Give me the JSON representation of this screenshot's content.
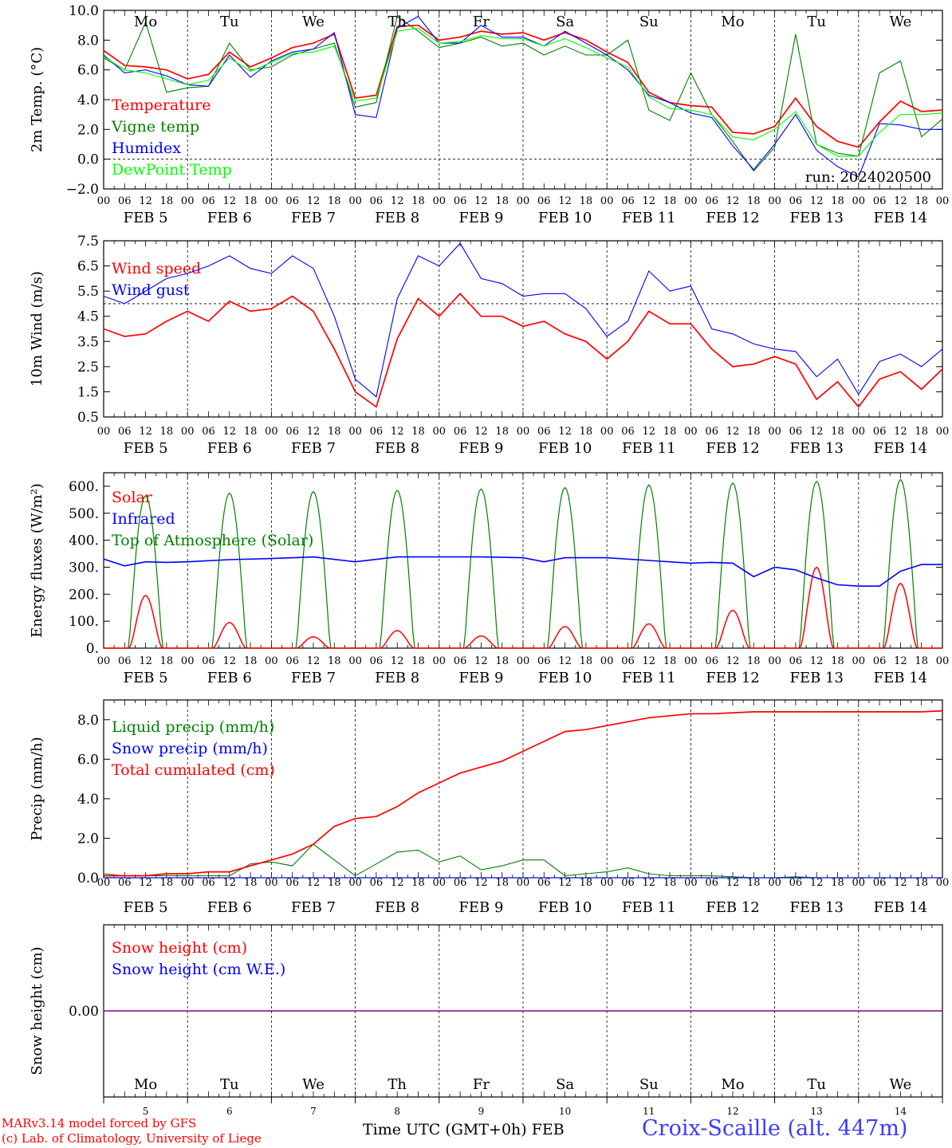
{
  "run_label": "run: 2024020500",
  "day_names": [
    "Mo",
    "Tu",
    "We",
    "Th",
    "Fr",
    "Sa",
    "Su",
    "Mo",
    "Tu",
    "We"
  ],
  "weekend_color": "#ff0000",
  "date_labels": [
    "FEB  5",
    "FEB  6",
    "FEB  7",
    "FEB  8",
    "FEB  9",
    "FEB 10",
    "FEB 11",
    "FEB 12",
    "FEB 13",
    "FEB 14"
  ],
  "hour_ticks": [
    "00",
    "06",
    "12",
    "18"
  ],
  "bottom_day_numbers": [
    "5",
    "6",
    "7",
    "8",
    "9",
    "10",
    "11",
    "12",
    "13",
    "14"
  ],
  "bottom_axis_label": "Time UTC (GMT+0h)",
  "bottom_month": "FEB",
  "footer": {
    "model_line": "MARv3.14 model forced by GFS",
    "credit_line": "(c) Lab. of Climatology, University of Liege",
    "station": "Croix-Scaille (alt. 447m)"
  },
  "colors": {
    "red": "#ff0000",
    "green": "#008000",
    "blue": "#0000ff",
    "light_green": "#00ff00",
    "purple": "#800080"
  },
  "chart_data": [
    {
      "type": "line",
      "ylabel": "2m Temp. (°C)",
      "ylim": [
        -2,
        10
      ],
      "yticks": [
        "10.0",
        "8.0",
        "6.0",
        "4.0",
        "2.0",
        "0.0",
        "−2.0"
      ],
      "ref_line": 0,
      "x_days": [
        0,
        0.25,
        0.5,
        0.75,
        1,
        1.25,
        1.5,
        1.75,
        2,
        2.25,
        2.5,
        2.75,
        3,
        3.25,
        3.5,
        3.75,
        4,
        4.25,
        4.5,
        4.75,
        5,
        5.25,
        5.5,
        5.75,
        6,
        6.25,
        6.5,
        6.75,
        7,
        7.25,
        7.5,
        7.75,
        8,
        8.25,
        8.5,
        8.75,
        9,
        9.25,
        9.5,
        9.75,
        10
      ],
      "series": [
        {
          "name": "Temperature",
          "color": "#ff0000",
          "values": [
            7.3,
            6.3,
            6.2,
            6.0,
            5.4,
            5.7,
            7.2,
            6.2,
            6.8,
            7.5,
            7.8,
            8.4,
            4.1,
            4.3,
            8.9,
            9.0,
            8.0,
            8.2,
            8.6,
            8.4,
            8.5,
            8.0,
            8.5,
            8.0,
            7.2,
            6.5,
            4.5,
            3.8,
            3.6,
            3.5,
            1.8,
            1.7,
            2.2,
            4.1,
            2.2,
            1.2,
            0.8,
            2.5,
            3.9,
            3.2,
            3.3
          ]
        },
        {
          "name": "Vigne temp",
          "color": "#008000",
          "values": [
            6.8,
            6.0,
            9.2,
            4.5,
            4.8,
            4.9,
            7.8,
            6.0,
            6.2,
            7.0,
            7.4,
            7.8,
            3.5,
            3.8,
            9.6,
            8.6,
            7.5,
            7.8,
            8.2,
            7.6,
            7.8,
            7.0,
            7.6,
            7.0,
            7.0,
            8.0,
            3.3,
            2.6,
            5.8,
            3.0,
            1.2,
            -0.8,
            0.8,
            8.4,
            1.0,
            0.4,
            0.2,
            5.8,
            6.6,
            1.5,
            2.7
          ]
        },
        {
          "name": "Humidex",
          "color": "#0000ff",
          "values": [
            7.0,
            5.8,
            6.0,
            5.6,
            5.0,
            4.9,
            7.0,
            5.5,
            6.6,
            7.2,
            7.4,
            8.5,
            3.0,
            2.8,
            8.8,
            9.6,
            7.8,
            7.8,
            9.0,
            8.2,
            8.2,
            7.6,
            8.6,
            7.8,
            7.0,
            6.0,
            4.3,
            3.8,
            3.1,
            2.8,
            0.9,
            -0.7,
            1.0,
            3.0,
            0.6,
            -0.5,
            -1.2,
            2.4,
            2.3,
            2.0,
            2.0
          ]
        },
        {
          "name": "DewPoint Temp",
          "color": "#00ff00",
          "values": [
            6.9,
            6.0,
            5.8,
            5.4,
            5.0,
            5.3,
            6.8,
            5.9,
            6.5,
            7.1,
            7.2,
            7.6,
            3.9,
            4.1,
            8.6,
            8.8,
            7.8,
            7.9,
            8.3,
            8.1,
            8.1,
            7.6,
            8.1,
            7.5,
            6.8,
            6.2,
            4.2,
            3.4,
            3.3,
            3.0,
            1.5,
            1.3,
            2.0,
            3.2,
            1.0,
            0.2,
            0.2,
            1.8,
            3.0,
            3.0,
            3.1
          ]
        }
      ]
    },
    {
      "type": "line",
      "ylabel": "10m Wind (m/s)",
      "ylim": [
        0.5,
        7.5
      ],
      "yticks": [
        "7.5",
        "6.5",
        "5.5",
        "4.5",
        "3.5",
        "2.5",
        "1.5",
        "0.5"
      ],
      "ref_line": 5,
      "x_days": [
        0,
        0.25,
        0.5,
        0.75,
        1,
        1.25,
        1.5,
        1.75,
        2,
        2.25,
        2.5,
        2.75,
        3,
        3.25,
        3.5,
        3.75,
        4,
        4.25,
        4.5,
        4.75,
        5,
        5.25,
        5.5,
        5.75,
        6,
        6.25,
        6.5,
        6.75,
        7,
        7.25,
        7.5,
        7.75,
        8,
        8.25,
        8.5,
        8.75,
        9,
        9.25,
        9.5,
        9.75,
        10
      ],
      "series": [
        {
          "name": "Wind speed",
          "color": "#ff0000",
          "values": [
            4.0,
            3.7,
            3.8,
            4.3,
            4.7,
            4.3,
            5.1,
            4.7,
            4.8,
            5.3,
            4.7,
            3.2,
            1.5,
            0.9,
            3.6,
            5.2,
            4.5,
            5.4,
            4.5,
            4.5,
            4.1,
            4.3,
            3.8,
            3.5,
            2.8,
            3.5,
            4.7,
            4.2,
            4.2,
            3.2,
            2.5,
            2.6,
            2.9,
            2.6,
            1.2,
            1.9,
            0.9,
            2.0,
            2.3,
            1.6,
            2.4
          ]
        },
        {
          "name": "Wind gust",
          "color": "#0000ff",
          "values": [
            5.3,
            5.0,
            5.5,
            6.0,
            6.2,
            6.5,
            6.9,
            6.4,
            6.2,
            6.9,
            6.4,
            4.5,
            2.0,
            1.3,
            5.2,
            6.9,
            6.5,
            7.4,
            6.0,
            5.8,
            5.3,
            5.4,
            5.4,
            4.8,
            3.7,
            4.3,
            6.3,
            5.5,
            5.7,
            4.0,
            3.8,
            3.4,
            3.2,
            3.1,
            2.1,
            2.8,
            1.4,
            2.7,
            3.0,
            2.5,
            3.2
          ]
        }
      ]
    },
    {
      "type": "line",
      "ylabel": "Energy fluxes (W/m²)",
      "ylim": [
        0,
        650
      ],
      "yticks": [
        "600.",
        "500.",
        "400.",
        "300.",
        "200.",
        "100.",
        "0."
      ],
      "series": [
        {
          "name": "Solar",
          "color": "#ff0000",
          "peaks": [
            195,
            95,
            42,
            65,
            45,
            80,
            90,
            140,
            300,
            240
          ]
        },
        {
          "name": "Infrared",
          "color": "#0000ff",
          "x_days": [
            0,
            0.25,
            0.5,
            0.75,
            1,
            1.5,
            2,
            2.5,
            3,
            3.5,
            4,
            4.5,
            5,
            5.25,
            5.5,
            6,
            6.5,
            7,
            7.25,
            7.5,
            7.75,
            8,
            8.25,
            8.5,
            8.75,
            9,
            9.25,
            9.5,
            9.75,
            10
          ],
          "values": [
            330,
            305,
            320,
            318,
            320,
            328,
            332,
            338,
            320,
            338,
            338,
            338,
            335,
            320,
            335,
            335,
            325,
            315,
            318,
            315,
            265,
            300,
            290,
            260,
            235,
            230,
            230,
            285,
            310,
            310
          ]
        },
        {
          "name": "Top of Atmosphere (Solar)",
          "color": "#008000",
          "peaks": [
            565,
            575,
            580,
            585,
            590,
            595,
            605,
            612,
            618,
            625
          ]
        }
      ]
    },
    {
      "type": "line",
      "ylabel": "Precip (mm/h)",
      "ylim": [
        0,
        9
      ],
      "yticks": [
        "8.0",
        "6.0",
        "4.0",
        "2.0",
        "0.0"
      ],
      "x_days": [
        0,
        0.25,
        0.5,
        0.75,
        1,
        1.25,
        1.5,
        1.75,
        2,
        2.25,
        2.5,
        2.75,
        3,
        3.25,
        3.5,
        3.75,
        4,
        4.25,
        4.5,
        4.75,
        5,
        5.25,
        5.5,
        5.75,
        6,
        6.25,
        6.5,
        6.75,
        7,
        7.25,
        7.5,
        7.75,
        8,
        8.25,
        8.5,
        8.75,
        9,
        9.25,
        9.5,
        9.75,
        10
      ],
      "series": [
        {
          "name": "Liquid precip (mm/h)",
          "color": "#008000",
          "values": [
            0.2,
            0.1,
            0.1,
            0.1,
            0.1,
            0.1,
            0.1,
            0.7,
            0.8,
            0.6,
            1.7,
            0.9,
            0.1,
            0.7,
            1.3,
            1.4,
            0.8,
            1.1,
            0.4,
            0.6,
            0.9,
            0.9,
            0.1,
            0.2,
            0.3,
            0.5,
            0.2,
            0.1,
            0.1,
            0.1,
            0.05,
            0,
            0,
            0.05,
            0,
            0,
            0,
            0,
            0,
            0,
            0
          ]
        },
        {
          "name": "Snow precip (mm/h)",
          "color": "#0000ff",
          "values": [
            0,
            0,
            0,
            0,
            0,
            0,
            0,
            0,
            0,
            0,
            0,
            0,
            0,
            0,
            0,
            0,
            0,
            0,
            0,
            0,
            0,
            0,
            0,
            0,
            0,
            0,
            0,
            0,
            0,
            0,
            0,
            0,
            0,
            0,
            0,
            0,
            0,
            0,
            0,
            0,
            0
          ]
        },
        {
          "name": "Total cumulated (cm)",
          "color": "#ff0000",
          "values": [
            0.1,
            0.1,
            0.1,
            0.2,
            0.2,
            0.3,
            0.3,
            0.6,
            0.9,
            1.2,
            1.7,
            2.6,
            3.0,
            3.1,
            3.6,
            4.3,
            4.8,
            5.3,
            5.6,
            5.9,
            6.4,
            6.9,
            7.4,
            7.5,
            7.7,
            7.9,
            8.1,
            8.2,
            8.3,
            8.3,
            8.35,
            8.4,
            8.4,
            8.4,
            8.4,
            8.4,
            8.4,
            8.4,
            8.4,
            8.4,
            8.45
          ]
        }
      ]
    },
    {
      "type": "line",
      "ylabel": "Snow height (cm)",
      "yticks": [
        "0.00"
      ],
      "series": [
        {
          "name": "Snow height (cm)",
          "color": "#ff0000",
          "values": [
            0,
            0
          ]
        },
        {
          "name": "Snow height (cm W.E.)",
          "color": "#0000ff",
          "values": [
            0,
            0
          ]
        }
      ]
    }
  ]
}
